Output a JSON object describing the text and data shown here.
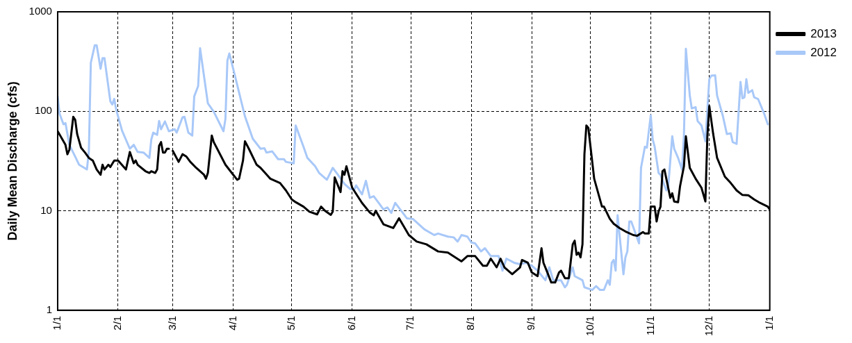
{
  "chart_data": {
    "type": "line",
    "ylabel": "Daily Mean Discharge (cfs)",
    "log": "y",
    "grid": true,
    "legend": "right",
    "marker": "none",
    "line_style": "solid",
    "xlim": [
      "2013-01-01",
      "2014-01-01"
    ],
    "xticks": [
      {
        "value": "2013-01-01",
        "label": "1/1"
      },
      {
        "value": "2013-02-01",
        "label": "2/1"
      },
      {
        "value": "2013-03-01",
        "label": "3/1"
      },
      {
        "value": "2013-04-01",
        "label": "4/1"
      },
      {
        "value": "2013-05-01",
        "label": "5/1"
      },
      {
        "value": "2013-06-01",
        "label": "6/1"
      },
      {
        "value": "2013-07-01",
        "label": "7/1"
      },
      {
        "value": "2013-08-01",
        "label": "8/1"
      },
      {
        "value": "2013-09-01",
        "label": "9/1"
      },
      {
        "value": "2013-10-01",
        "label": "10/1"
      },
      {
        "value": "2013-11-01",
        "label": "11/1"
      },
      {
        "value": "2013-12-01",
        "label": "12/1"
      },
      {
        "value": "2014-01-01",
        "label": "1/1"
      }
    ],
    "ylim": [
      1,
      1000
    ],
    "yticks": [
      1,
      10,
      100,
      1000
    ],
    "series": [
      {
        "name": "2013",
        "color": "#000000",
        "x": [
          "2013-01-01",
          "2013-01-05",
          "2013-01-06",
          "2013-01-07",
          "2013-01-09",
          "2013-01-10",
          "2013-01-11",
          "2013-01-13",
          "2013-01-15",
          "2013-01-17",
          "2013-01-19",
          "2013-01-21",
          "2013-01-23",
          "2013-01-24",
          "2013-01-25",
          "2013-01-27",
          "2013-01-28",
          "2013-01-30",
          "2013-02-01",
          "2013-02-05",
          "2013-02-07",
          "2013-02-09",
          "2013-02-10",
          "2013-02-11",
          "2013-02-15",
          "2013-02-17",
          "2013-02-18",
          "2013-02-20",
          "2013-02-21",
          "2013-02-22",
          "2013-02-23",
          "2013-02-24",
          "2013-02-25",
          "2013-02-26",
          "2013-02-27",
          "2013-02-28",
          "2013-03-01",
          "2013-03-04",
          "2013-03-06",
          "2013-03-08",
          "2013-03-10",
          "2013-03-13",
          "2013-03-17",
          "2013-03-18",
          "2013-03-19",
          "2013-03-21",
          "2013-03-22",
          "2013-03-28",
          "2013-04-01",
          "2013-04-03",
          "2013-04-04",
          "2013-04-06",
          "2013-04-07",
          "2013-04-09",
          "2013-04-13",
          "2013-04-15",
          "2013-04-20",
          "2013-04-25",
          "2013-04-28",
          "2013-05-01",
          "2013-05-03",
          "2013-05-07",
          "2013-05-10",
          "2013-05-14",
          "2013-05-16",
          "2013-05-18",
          "2013-05-21",
          "2013-05-22",
          "2013-05-23",
          "2013-05-26",
          "2013-05-27",
          "2013-05-28",
          "2013-05-29",
          "2013-06-01",
          "2013-06-06",
          "2013-06-10",
          "2013-06-12",
          "2013-06-13",
          "2013-06-17",
          "2013-06-22",
          "2013-06-25",
          "2013-06-30",
          "2013-07-04",
          "2013-07-09",
          "2013-07-15",
          "2013-07-20",
          "2013-07-27",
          "2013-07-30",
          "2013-08-03",
          "2013-08-07",
          "2013-08-09",
          "2013-08-11",
          "2013-08-14",
          "2013-08-16",
          "2013-08-18",
          "2013-08-22",
          "2013-08-26",
          "2013-08-27",
          "2013-08-30",
          "2013-09-01",
          "2013-09-04",
          "2013-09-06",
          "2013-09-07",
          "2013-09-09",
          "2013-09-11",
          "2013-09-13",
          "2013-09-15",
          "2013-09-16",
          "2013-09-18",
          "2013-09-20",
          "2013-09-22",
          "2013-09-23",
          "2013-09-24",
          "2013-09-25",
          "2013-09-26",
          "2013-09-27",
          "2013-09-28",
          "2013-09-29",
          "2013-09-30",
          "2013-10-03",
          "2013-10-07",
          "2013-10-08",
          "2013-10-11",
          "2013-10-13",
          "2013-10-16",
          "2013-10-19",
          "2013-10-23",
          "2013-10-25",
          "2013-10-28",
          "2013-10-29",
          "2013-10-31",
          "2013-11-01",
          "2013-11-03",
          "2013-11-04",
          "2013-11-05",
          "2013-11-06",
          "2013-11-07",
          "2013-11-08",
          "2013-11-11",
          "2013-11-12",
          "2013-11-13",
          "2013-11-15",
          "2013-11-16",
          "2013-11-18",
          "2013-11-19",
          "2013-11-21",
          "2013-11-24",
          "2013-11-27",
          "2013-11-29",
          "2013-11-30",
          "2013-12-01",
          "2013-12-03",
          "2013-12-05",
          "2013-12-09",
          "2013-12-12",
          "2013-12-15",
          "2013-12-18",
          "2013-12-21",
          "2013-12-24",
          "2013-12-27",
          "2013-12-31",
          "2014-01-01"
        ],
        "values": [
          63,
          46,
          37,
          41,
          88,
          82,
          59,
          43,
          38.5,
          34,
          32,
          26,
          23,
          29,
          26,
          29,
          27.5,
          32,
          32,
          26,
          39,
          30,
          32,
          29,
          25,
          24,
          25,
          24,
          26,
          45,
          49,
          38.5,
          38.5,
          42,
          42,
          null,
          40,
          31,
          37,
          35,
          31,
          27,
          23,
          21,
          24,
          57,
          49,
          29,
          23,
          20.5,
          21,
          32,
          50,
          42,
          29,
          27,
          21,
          19,
          16,
          13,
          12.2,
          11,
          9.8,
          9.2,
          11,
          10,
          9.1,
          9.8,
          21.6,
          15.4,
          25,
          23,
          28,
          17,
          12,
          9.6,
          9,
          10,
          7.3,
          6.7,
          8.4,
          5.7,
          4.9,
          4.6,
          3.9,
          3.8,
          3.1,
          3.5,
          3.5,
          2.8,
          2.8,
          3.3,
          2.7,
          3.3,
          2.7,
          2.3,
          2.7,
          3.2,
          3.0,
          2.4,
          2.2,
          4.2,
          3.0,
          2.4,
          1.9,
          1.9,
          2.4,
          2.5,
          2.1,
          2.1,
          4.6,
          5.0,
          3.6,
          3.8,
          3.4,
          4.6,
          37,
          72,
          68,
          21,
          11,
          11,
          8.3,
          7.4,
          6.7,
          6.2,
          5.7,
          5.6,
          6.1,
          5.9,
          5.9,
          11,
          11,
          7.8,
          9.8,
          11,
          25,
          26,
          13.5,
          15,
          12.4,
          12.2,
          17.6,
          28,
          56,
          27,
          21,
          17,
          12.4,
          56,
          113,
          59,
          34,
          22,
          19,
          16,
          14.4,
          14.3,
          13,
          12,
          11,
          10.3
        ]
      },
      {
        "name": "2012",
        "color": "#a8c8f8",
        "x": [
          "2013-01-01",
          "2013-01-02",
          "2013-01-04",
          "2013-01-05",
          "2013-01-07",
          "2013-01-10",
          "2013-01-12",
          "2013-01-16",
          "2013-01-17",
          "2013-01-18",
          "2013-01-20",
          "2013-01-21",
          "2013-01-23",
          "2013-01-24",
          "2013-01-25",
          "2013-01-28",
          "2013-01-29",
          "2013-01-30",
          "2013-01-31",
          "2013-02-03",
          "2013-02-07",
          "2013-02-09",
          "2013-02-11",
          "2013-02-14",
          "2013-02-17",
          "2013-02-18",
          "2013-02-19",
          "2013-02-21",
          "2013-02-22",
          "2013-02-23",
          "2013-02-25",
          "2013-02-27",
          "2013-03-02",
          "2013-03-03",
          "2013-03-06",
          "2013-03-07",
          "2013-03-09",
          "2013-03-11",
          "2013-03-12",
          "2013-03-14",
          "2013-03-15",
          "2013-03-19",
          "2013-03-22",
          "2013-03-27",
          "2013-03-28",
          "2013-03-29",
          "2013-03-30",
          "2013-04-02",
          "2013-04-07",
          "2013-04-11",
          "2013-04-15",
          "2013-04-17",
          "2013-04-18",
          "2013-04-21",
          "2013-04-24",
          "2013-04-27",
          "2013-04-28",
          "2013-05-02",
          "2013-05-03",
          "2013-05-07",
          "2013-05-09",
          "2013-05-13",
          "2013-05-15",
          "2013-05-19",
          "2013-05-22",
          "2013-05-24",
          "2013-05-28",
          "2013-05-31",
          "2013-06-02",
          "2013-06-03",
          "2013-06-06",
          "2013-06-08",
          "2013-06-10",
          "2013-06-12",
          "2013-06-14",
          "2013-06-17",
          "2013-06-19",
          "2013-06-21",
          "2013-06-23",
          "2013-06-29",
          "2013-07-02",
          "2013-07-08",
          "2013-07-13",
          "2013-07-15",
          "2013-07-20",
          "2013-07-23",
          "2013-07-25",
          "2013-07-27",
          "2013-07-30",
          "2013-08-01",
          "2013-08-03",
          "2013-08-06",
          "2013-08-08",
          "2013-08-11",
          "2013-08-15",
          "2013-08-17",
          "2013-08-19",
          "2013-08-23",
          "2013-08-26",
          "2013-08-29",
          "2013-09-01",
          "2013-09-04",
          "2013-09-08",
          "2013-09-10",
          "2013-09-12",
          "2013-09-16",
          "2013-09-18",
          "2013-09-19",
          "2013-09-22",
          "2013-09-23",
          "2013-09-25",
          "2013-09-27",
          "2013-09-28",
          "2013-10-02",
          "2013-10-04",
          "2013-10-06",
          "2013-10-08",
          "2013-10-10",
          "2013-10-11",
          "2013-10-12",
          "2013-10-13",
          "2013-10-14",
          "2013-10-15",
          "2013-10-18",
          "2013-10-19",
          "2013-10-20",
          "2013-10-21",
          "2013-10-22",
          "2013-10-26",
          "2013-10-27",
          "2013-10-29",
          "2013-10-30",
          "2013-11-01",
          "2013-11-02",
          "2013-11-03",
          "2013-11-05",
          "2013-11-06",
          "2013-11-09",
          "2013-11-10",
          "2013-11-12",
          "2013-11-13",
          "2013-11-15",
          "2013-11-17",
          "2013-11-18",
          "2013-11-19",
          "2013-11-21",
          "2013-11-22",
          "2013-11-24",
          "2013-11-25",
          "2013-11-27",
          "2013-11-29",
          "2013-12-01",
          "2013-12-02",
          "2013-12-04",
          "2013-12-05",
          "2013-12-08",
          "2013-12-10",
          "2013-12-12",
          "2013-12-13",
          "2013-12-15",
          "2013-12-17",
          "2013-12-18",
          "2013-12-19",
          "2013-12-20",
          "2013-12-21",
          "2013-12-23",
          "2013-12-24",
          "2013-12-26",
          "2013-12-29",
          "2013-12-31"
        ],
        "values": [
          141,
          94,
          74,
          76,
          46,
          35,
          29,
          26,
          40,
          307,
          460,
          460,
          268,
          342,
          342,
          126,
          117,
          133,
          104,
          64,
          42,
          46,
          39,
          38.5,
          34,
          52,
          61,
          58,
          80,
          66,
          79,
          63,
          66,
          61,
          87,
          88,
          61,
          57,
          141,
          179,
          430,
          120,
          99,
          63,
          84,
          324,
          381,
          222,
          89,
          53,
          42,
          42.5,
          38.5,
          39.5,
          33,
          33,
          31,
          30,
          72,
          44,
          34,
          28,
          24,
          20.5,
          27,
          24,
          18.6,
          16.5,
          16.3,
          18,
          14.6,
          20,
          13.5,
          14,
          12.4,
          10.3,
          10.8,
          9.5,
          12,
          8.4,
          8.3,
          6.5,
          5.7,
          5.9,
          5.5,
          5.4,
          4.9,
          5.7,
          5.5,
          4.8,
          4.7,
          3.9,
          4.2,
          3.5,
          3.5,
          2.5,
          3.3,
          3.0,
          2.9,
          3.0,
          2.8,
          2.5,
          2.0,
          2.7,
          2.0,
          2.0,
          1.7,
          1.8,
          2.7,
          2.2,
          2.1,
          2.0,
          1.7,
          1.6,
          1.75,
          1.6,
          1.6,
          2.0,
          1.8,
          3.0,
          3.2,
          2.5,
          9,
          2.3,
          3.4,
          3.9,
          7.8,
          7.8,
          4.7,
          27,
          44,
          43,
          91,
          52,
          44,
          24,
          23,
          16,
          18,
          56,
          42,
          34,
          26,
          57,
          425,
          144,
          107,
          110,
          80,
          72,
          50,
          210,
          228,
          230,
          144,
          89,
          59,
          60,
          49,
          47,
          197,
          135,
          138,
          210,
          153,
          163,
          138,
          133,
          96,
          74
        ]
      }
    ]
  }
}
